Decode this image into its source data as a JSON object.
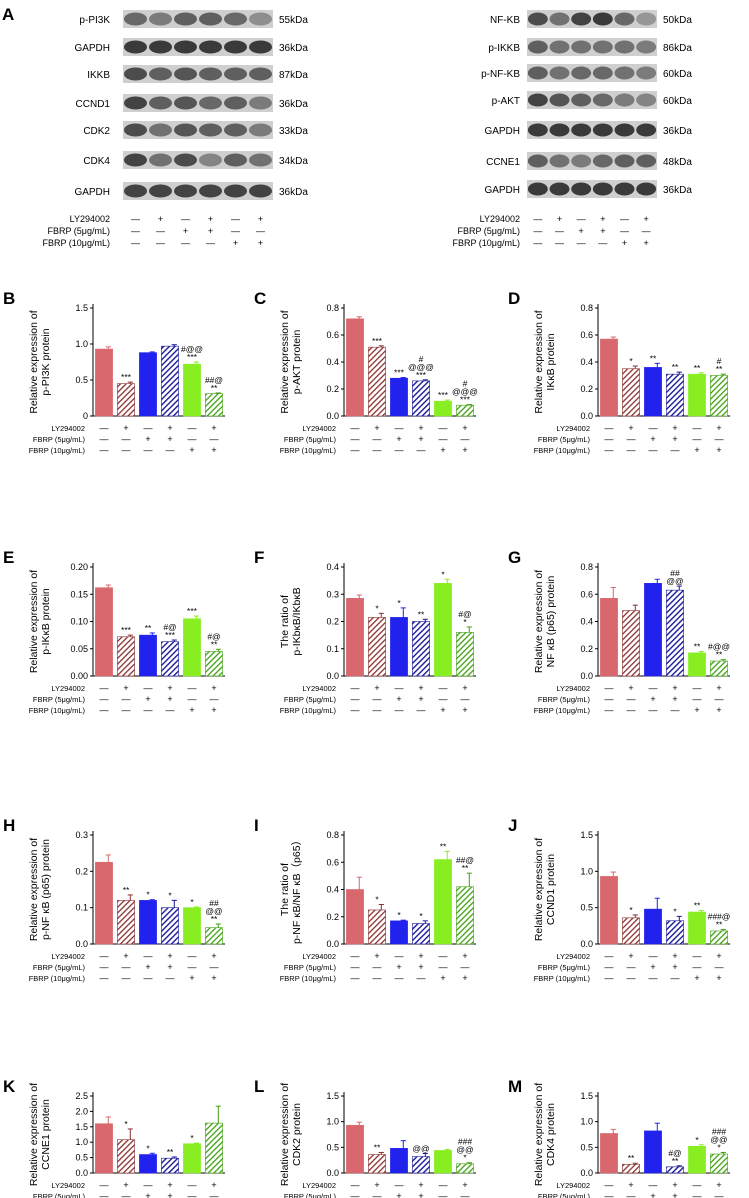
{
  "figure": {
    "blot_panel_label": "A",
    "treatments": {
      "rows": [
        "LY294002",
        "FBRP (5μg/mL)",
        "FBRP (10μg/mL)"
      ],
      "signs": [
        [
          "—",
          "+",
          "—",
          "+",
          "—",
          "+"
        ],
        [
          "—",
          "—",
          "+",
          "+",
          "—",
          "—"
        ],
        [
          "—",
          "—",
          "—",
          "—",
          "+",
          "+"
        ]
      ]
    },
    "colors": {
      "control": "#d9686e",
      "ly": "#8a3030",
      "fbrp5": "#2222ee",
      "fbrp5_ly": "#1a1a9a",
      "fbrp10": "#88ee22",
      "fbrp10_ly": "#40a010"
    },
    "blots": {
      "left": {
        "bands": [
          {
            "protein": "p-PI3K",
            "size": "55kDa",
            "intensity": [
              0.55,
              0.45,
              0.6,
              0.6,
              0.55,
              0.35
            ]
          },
          {
            "protein": "GAPDH",
            "size": "36kDa",
            "intensity": [
              0.8,
              0.8,
              0.8,
              0.8,
              0.8,
              0.8
            ]
          },
          {
            "protein": "IKKB",
            "size": "87kDa",
            "intensity": [
              0.7,
              0.6,
              0.65,
              0.6,
              0.6,
              0.6
            ]
          },
          {
            "protein": "CCND1",
            "size": "36kDa",
            "intensity": [
              0.75,
              0.6,
              0.65,
              0.55,
              0.6,
              0.45
            ]
          },
          {
            "protein": "CDK2",
            "size": "33kDa",
            "intensity": [
              0.7,
              0.5,
              0.65,
              0.6,
              0.6,
              0.45
            ]
          },
          {
            "protein": "CDK4",
            "size": "34kDa",
            "intensity": [
              0.75,
              0.5,
              0.7,
              0.4,
              0.6,
              0.5
            ]
          },
          {
            "protein": "GAPDH",
            "size": "36kDa",
            "intensity": [
              0.75,
              0.75,
              0.75,
              0.75,
              0.75,
              0.75
            ]
          }
        ]
      },
      "right": {
        "bands": [
          {
            "protein": "NF-KB",
            "size": "50kDa",
            "intensity": [
              0.7,
              0.5,
              0.75,
              0.8,
              0.55,
              0.3
            ]
          },
          {
            "protein": "p-IKKB",
            "size": "86kDa",
            "intensity": [
              0.6,
              0.5,
              0.5,
              0.5,
              0.5,
              0.45
            ]
          },
          {
            "protein": "p-NF-KB",
            "size": "60kDa",
            "intensity": [
              0.6,
              0.5,
              0.55,
              0.55,
              0.5,
              0.45
            ]
          },
          {
            "protein": "p-AKT",
            "size": "60kDa",
            "intensity": [
              0.75,
              0.65,
              0.6,
              0.55,
              0.45,
              0.4
            ]
          },
          {
            "protein": "GAPDH",
            "size": "36kDa",
            "intensity": [
              0.8,
              0.8,
              0.8,
              0.8,
              0.8,
              0.8
            ]
          },
          {
            "protein": "CCNE1",
            "size": "48kDa",
            "intensity": [
              0.6,
              0.5,
              0.45,
              0.55,
              0.6,
              0.6
            ]
          },
          {
            "protein": "GAPDH",
            "size": "36kDa",
            "intensity": [
              0.8,
              0.8,
              0.8,
              0.8,
              0.8,
              0.8
            ]
          }
        ]
      }
    }
  },
  "chart_data": [
    {
      "panel": "B",
      "type": "bar",
      "ylabel": [
        "Relative expression of",
        "p-PI3K protein"
      ],
      "ylim": [
        0,
        1.5
      ],
      "yticks": [
        "0",
        "0.5",
        "1.0",
        "1.5"
      ],
      "tickvals": [
        0,
        0.5,
        1.0,
        1.5
      ],
      "values": [
        0.93,
        0.45,
        0.88,
        0.97,
        0.72,
        0.31
      ],
      "errors": [
        0.03,
        0.02,
        0.01,
        0.02,
        0.03,
        0.01
      ],
      "annotations": [
        [],
        [
          "***"
        ],
        [],
        [],
        [
          "#@@",
          "***"
        ],
        [
          "##@",
          "**"
        ]
      ]
    },
    {
      "panel": "C",
      "type": "bar",
      "ylabel": [
        "Relative expression of",
        "p-AKT protein"
      ],
      "ylim": [
        0,
        0.8
      ],
      "yticks": [
        "0.0",
        "0.2",
        "0.4",
        "0.6",
        "0.8"
      ],
      "tickvals": [
        0,
        0.2,
        0.4,
        0.6,
        0.8
      ],
      "values": [
        0.72,
        0.51,
        0.28,
        0.26,
        0.11,
        0.08
      ],
      "errors": [
        0.015,
        0.01,
        0.005,
        0.008,
        0.008,
        0.005
      ],
      "annotations": [
        [],
        [
          "***"
        ],
        [
          "***"
        ],
        [
          "#",
          "@@@",
          "***"
        ],
        [
          "***"
        ],
        [
          "#",
          "@@@",
          "***"
        ]
      ]
    },
    {
      "panel": "D",
      "type": "bar",
      "ylabel": [
        "Relative expression of",
        "IKκB protein"
      ],
      "ylim": [
        0,
        0.8
      ],
      "yticks": [
        "0.0",
        "0.2",
        "0.4",
        "0.6",
        "0.8"
      ],
      "tickvals": [
        0,
        0.2,
        0.4,
        0.6,
        0.8
      ],
      "values": [
        0.57,
        0.35,
        0.36,
        0.31,
        0.31,
        0.3
      ],
      "errors": [
        0.015,
        0.02,
        0.03,
        0.015,
        0.01,
        0.01
      ],
      "annotations": [
        [],
        [
          "*"
        ],
        [
          "**"
        ],
        [
          "**"
        ],
        [
          "**"
        ],
        [
          "#",
          "**"
        ]
      ]
    },
    {
      "panel": "E",
      "type": "bar",
      "ylabel": [
        "Relative expression of",
        "p-IKκB protein"
      ],
      "ylim": [
        0,
        0.2
      ],
      "yticks": [
        "0.00",
        "0.05",
        "0.10",
        "0.15",
        "0.20"
      ],
      "tickvals": [
        0,
        0.05,
        0.1,
        0.15,
        0.2
      ],
      "values": [
        0.162,
        0.072,
        0.075,
        0.063,
        0.105,
        0.045
      ],
      "errors": [
        0.005,
        0.003,
        0.004,
        0.003,
        0.005,
        0.004
      ],
      "annotations": [
        [],
        [
          "***"
        ],
        [
          "**"
        ],
        [
          "#@",
          "***"
        ],
        [
          "***"
        ],
        [
          "#@",
          "**"
        ]
      ]
    },
    {
      "panel": "F",
      "type": "bar",
      "ylabel": [
        "The ratio of",
        "p-IKbκB/IKbκB"
      ],
      "ylim": [
        0,
        0.4
      ],
      "yticks": [
        "0.0",
        "0.1",
        "0.2",
        "0.3",
        "0.4"
      ],
      "tickvals": [
        0,
        0.1,
        0.2,
        0.3,
        0.4
      ],
      "values": [
        0.285,
        0.215,
        0.215,
        0.2,
        0.34,
        0.16
      ],
      "errors": [
        0.012,
        0.015,
        0.035,
        0.008,
        0.015,
        0.02
      ],
      "annotations": [
        [],
        [
          "*"
        ],
        [
          "*"
        ],
        [
          "**"
        ],
        [
          "*"
        ],
        [
          "#@",
          "*"
        ]
      ]
    },
    {
      "panel": "G",
      "type": "bar",
      "ylabel": [
        "Relative expression of",
        "NF κB (p65) protein"
      ],
      "ylim": [
        0,
        0.8
      ],
      "yticks": [
        "0.0",
        "0.2",
        "0.4",
        "0.6",
        "0.8"
      ],
      "tickvals": [
        0,
        0.2,
        0.4,
        0.6,
        0.8
      ],
      "values": [
        0.57,
        0.48,
        0.68,
        0.63,
        0.17,
        0.11
      ],
      "errors": [
        0.08,
        0.04,
        0.03,
        0.03,
        0.01,
        0.01
      ],
      "annotations": [
        [],
        [],
        [],
        [
          "##",
          "@@"
        ],
        [
          "**"
        ],
        [
          "#@@",
          "**"
        ]
      ]
    },
    {
      "panel": "H",
      "type": "bar",
      "ylabel": [
        "Relative expression of",
        "p-NF κB (p65) protein"
      ],
      "ylim": [
        0,
        0.3
      ],
      "yticks": [
        "0.0",
        "0.1",
        "0.2",
        "0.3"
      ],
      "tickvals": [
        0,
        0.1,
        0.2,
        0.3
      ],
      "values": [
        0.225,
        0.12,
        0.12,
        0.1,
        0.1,
        0.045
      ],
      "errors": [
        0.02,
        0.015,
        0.002,
        0.02,
        0.002,
        0.01
      ],
      "annotations": [
        [],
        [
          "**"
        ],
        [
          "*"
        ],
        [
          "*"
        ],
        [
          "*"
        ],
        [
          "##",
          "@@",
          "**"
        ]
      ]
    },
    {
      "panel": "I",
      "type": "bar",
      "ylabel": [
        "The ratio of",
        "p-NF κB/NF κB（p65）"
      ],
      "ylim": [
        0,
        0.8
      ],
      "yticks": [
        "0.0",
        "0.2",
        "0.4",
        "0.6",
        "0.8"
      ],
      "tickvals": [
        0,
        0.2,
        0.4,
        0.6,
        0.8
      ],
      "values": [
        0.4,
        0.25,
        0.17,
        0.15,
        0.62,
        0.42
      ],
      "errors": [
        0.09,
        0.04,
        0.005,
        0.02,
        0.06,
        0.1
      ],
      "annotations": [
        [],
        [
          "*"
        ],
        [
          "*"
        ],
        [
          "*"
        ],
        [
          "**"
        ],
        [
          "##@",
          "**"
        ]
      ]
    },
    {
      "panel": "J",
      "type": "bar",
      "ylabel": [
        "Relative expression of",
        "CCND1 protein"
      ],
      "ylim": [
        0,
        1.5
      ],
      "yticks": [
        "0.0",
        "0.5",
        "1.0",
        "1.5"
      ],
      "tickvals": [
        0,
        0.5,
        1.0,
        1.5
      ],
      "values": [
        0.93,
        0.36,
        0.48,
        0.32,
        0.44,
        0.18
      ],
      "errors": [
        0.06,
        0.04,
        0.15,
        0.06,
        0.02,
        0.02
      ],
      "annotations": [
        [],
        [
          "*"
        ],
        [],
        [
          "*"
        ],
        [
          "**"
        ],
        [
          "###@",
          "**"
        ]
      ]
    },
    {
      "panel": "K",
      "type": "bar",
      "ylabel": [
        "Relative expression of",
        "CCNE1 protein"
      ],
      "ylim": [
        0,
        2.5
      ],
      "yticks": [
        "0.0",
        "0.5",
        "1.0",
        "1.5",
        "2.0",
        "2.5"
      ],
      "tickvals": [
        0,
        0.5,
        1.0,
        1.5,
        2.0,
        2.5
      ],
      "values": [
        1.6,
        1.08,
        0.6,
        0.48,
        0.95,
        1.62
      ],
      "errors": [
        0.22,
        0.35,
        0.04,
        0.04,
        0.02,
        0.55
      ],
      "annotations": [
        [],
        [
          "*"
        ],
        [
          "*"
        ],
        [
          "**"
        ],
        [
          "*"
        ],
        []
      ]
    },
    {
      "panel": "L",
      "type": "bar",
      "ylabel": [
        "Relative expression of",
        "CDK2 protein"
      ],
      "ylim": [
        0,
        1.5
      ],
      "yticks": [
        "0.0",
        "0.5",
        "1.0",
        "1.5"
      ],
      "tickvals": [
        0,
        0.5,
        1.0,
        1.5
      ],
      "values": [
        0.93,
        0.36,
        0.48,
        0.32,
        0.44,
        0.18
      ],
      "errors": [
        0.06,
        0.04,
        0.15,
        0.06,
        0.02,
        0.02
      ],
      "annotations": [
        [],
        [
          "**"
        ],
        [],
        [
          "@@"
        ],
        [],
        [
          "###",
          "@@",
          "*"
        ]
      ]
    },
    {
      "panel": "M",
      "type": "bar",
      "ylabel": [
        "Relative expression of",
        "CDK4 protein"
      ],
      "ylim": [
        0,
        1.5
      ],
      "yticks": [
        "0.0",
        "0.5",
        "1.0",
        "1.5"
      ],
      "tickvals": [
        0,
        0.5,
        1.0,
        1.5
      ],
      "values": [
        0.77,
        0.17,
        0.82,
        0.12,
        0.52,
        0.37
      ],
      "errors": [
        0.08,
        0.02,
        0.15,
        0.02,
        0.03,
        0.03
      ],
      "annotations": [
        [],
        [
          "**"
        ],
        [],
        [
          "#@",
          "**"
        ],
        [
          "*"
        ],
        [
          "###",
          "@@",
          "*"
        ]
      ]
    }
  ]
}
